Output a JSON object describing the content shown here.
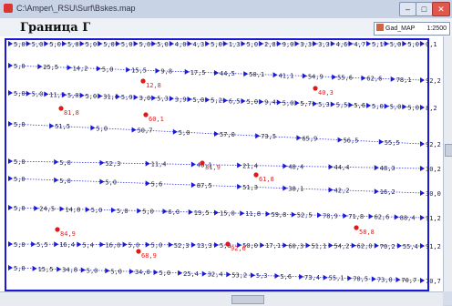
{
  "window": {
    "title": "C:\\Amper\\_RSU\\Surf\\Bskes.map",
    "min_glyph": "–",
    "max_glyph": "□",
    "close_glyph": "✕"
  },
  "header": {
    "title": "Граница Г",
    "layer_name": "Gad_MAP",
    "scale": "1:2500"
  },
  "colors": {
    "border": "#1a1ad6",
    "point": "#1a1ad6",
    "highlight": "#e01818",
    "dotted_line": "#3a3ae0"
  },
  "map": {
    "rows": [
      {
        "labels": [
          "5,0",
          "5,0",
          "5,0",
          "5,0",
          "5,0",
          "5,0",
          "5,0",
          "5,0",
          "5,0",
          "4,0",
          "4,3",
          "5,0",
          "1,3",
          "5,0",
          "2,8",
          "9,0",
          "3,3",
          "3,3",
          "4,6",
          "4,7",
          "5,1",
          "5,0",
          "5,0",
          "0,1"
        ]
      },
      {
        "labels": [
          "5,0",
          "25,5",
          "14,2",
          "5,0",
          "15,5",
          "9,8",
          "17,5",
          "44,5",
          "50,1",
          "41,1",
          "54,9",
          "55,6",
          "62,6",
          "78,1",
          "92,2"
        ]
      },
      {
        "labels": [
          "5,0",
          "5,0",
          "11,5",
          "5,0",
          "5,0",
          "31,4",
          "5,9",
          "3,0",
          "5,3",
          "3,9",
          "5,0",
          "5,2",
          "6,5",
          "5,0",
          "9,4",
          "5,0",
          "5,7",
          "5,3",
          "5,5",
          "5,6",
          "5,0",
          "5,0",
          "5,0",
          "8,2"
        ]
      },
      {
        "labels": [
          "5,0",
          "51,5",
          "5,0",
          "50,7",
          "5,0",
          "57,0",
          "73,5",
          "65,9",
          "56,5",
          "55,5",
          "92,2"
        ]
      },
      {
        "labels": [
          "5,0",
          "5,0",
          "52,3",
          "11,4",
          "46,1",
          "21,4",
          "48,4",
          "44,4",
          "48,3",
          "30,2"
        ]
      },
      {
        "labels": [
          "5,0",
          "5,0",
          "5,0",
          "5,6",
          "87,5",
          "51,3",
          "38,1",
          "42,2",
          "16,2",
          "30,0"
        ]
      },
      {
        "labels": [
          "5,0",
          "24,5",
          "14,8",
          "5,0",
          "5,0",
          "5,0",
          "6,0",
          "19,5",
          "15,0",
          "11,8",
          "59,8",
          "52,5",
          "78,9",
          "71,8",
          "62,6",
          "88,4",
          "91,2"
        ]
      },
      {
        "labels": [
          "5,0",
          "5,5",
          "16,4",
          "5,4",
          "16,0",
          "5,0",
          "5,0",
          "52,3",
          "13,3",
          "5,6",
          "50,0",
          "17,1",
          "60,3",
          "51,1",
          "54,2",
          "62,0",
          "70,2",
          "55,4",
          "91,2"
        ]
      },
      {
        "labels": [
          "5,0",
          "15,5",
          "34,8",
          "5,0",
          "5,0",
          "34,0",
          "5,0",
          "25,4",
          "32,4",
          "53,2",
          "5,3",
          "5,6",
          "73,4",
          "55,1",
          "70,5",
          "73,0",
          "70,7",
          "70,7"
        ]
      }
    ],
    "highlighted_labels": [
      "12,8",
      "40,3",
      "81,8",
      "60,1",
      "31,9",
      "61,8",
      "84,9",
      "92,6",
      "58,8",
      "68,9"
    ]
  }
}
